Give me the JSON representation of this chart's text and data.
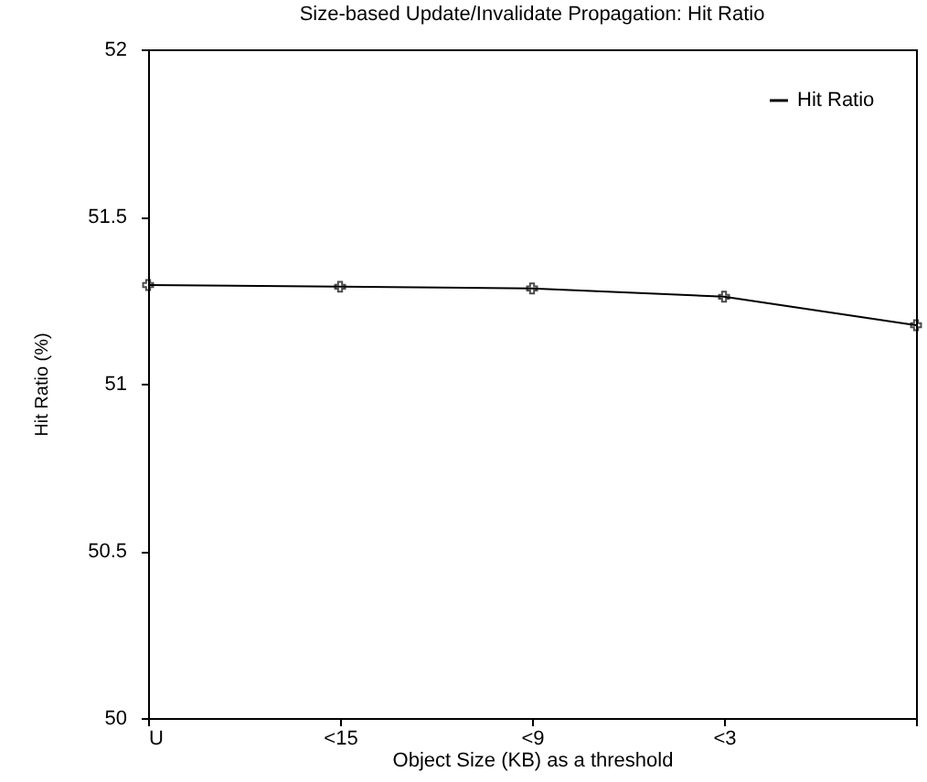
{
  "chart_data": {
    "type": "line",
    "title": "Size-based Update/Invalidate Propagation: Hit Ratio",
    "xlabel": "Object Size (KB) as a threshold",
    "ylabel": "Hit Ratio (%)",
    "categories": [
      "U",
      "<15",
      "<9",
      "<3",
      null
    ],
    "series": [
      {
        "name": "Hit Ratio",
        "color": "#000000",
        "values": [
          51.295,
          51.29,
          51.285,
          51.26,
          51.175
        ]
      }
    ],
    "ylim": [
      50,
      52
    ],
    "yticks": [
      50,
      50.5,
      51,
      51.5,
      52
    ],
    "grid": false,
    "legend": "top right",
    "marker": "cross",
    "line_style": "solid"
  }
}
